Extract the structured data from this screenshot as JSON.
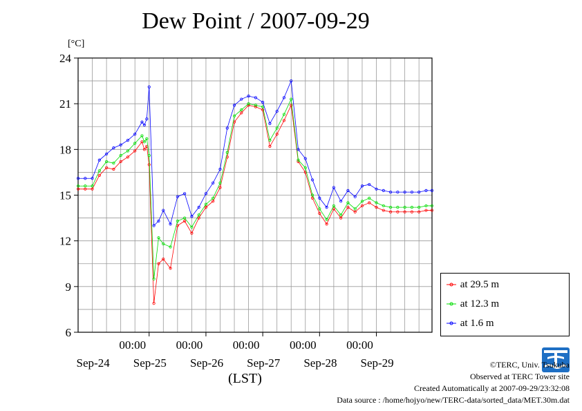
{
  "chart_data": {
    "type": "line",
    "title": "Dew Point / 2007-09-29",
    "unit_label": "[°C]",
    "xlabel": "(LST)",
    "ylim": [
      6,
      24
    ],
    "yticks": [
      6,
      9,
      12,
      15,
      18,
      21,
      24
    ],
    "xlim": [
      "2007-09-23T18:00",
      "2007-09-29T23:30"
    ],
    "x_time_ticks": [
      "00:00",
      "00:00",
      "00:00",
      "00:00",
      "00:00"
    ],
    "x_date_labels": [
      "Sep-24",
      "Sep-25",
      "Sep-26",
      "Sep-27",
      "Sep-28",
      "Sep-29"
    ],
    "grid": true,
    "legend_position": "bottom-right, outside plot",
    "anchors_x": [
      "2007-09-23T18:00",
      "2007-09-23T21:00",
      "2007-09-24T00:00",
      "2007-09-24T03:00",
      "2007-09-24T06:00",
      "2007-09-24T09:00",
      "2007-09-24T12:00",
      "2007-09-24T15:00",
      "2007-09-24T18:00",
      "2007-09-24T21:00",
      "2007-09-24T22:00",
      "2007-09-24T23:00",
      "2007-09-25T00:00",
      "2007-09-25T02:00",
      "2007-09-25T04:00",
      "2007-09-25T06:00",
      "2007-09-25T09:00",
      "2007-09-25T12:00",
      "2007-09-25T15:00",
      "2007-09-25T18:00",
      "2007-09-25T21:00",
      "2007-09-26T00:00",
      "2007-09-26T03:00",
      "2007-09-26T06:00",
      "2007-09-26T09:00",
      "2007-09-26T12:00",
      "2007-09-26T15:00",
      "2007-09-26T18:00",
      "2007-09-26T21:00",
      "2007-09-27T00:00",
      "2007-09-27T03:00",
      "2007-09-27T06:00",
      "2007-09-27T09:00",
      "2007-09-27T12:00",
      "2007-09-27T15:00",
      "2007-09-27T18:00",
      "2007-09-27T21:00",
      "2007-09-28T00:00",
      "2007-09-28T03:00",
      "2007-09-28T06:00",
      "2007-09-28T09:00",
      "2007-09-28T12:00",
      "2007-09-28T15:00",
      "2007-09-28T18:00",
      "2007-09-28T21:00",
      "2007-09-29T00:00",
      "2007-09-29T03:00",
      "2007-09-29T06:00",
      "2007-09-29T09:00",
      "2007-09-29T12:00",
      "2007-09-29T15:00",
      "2007-09-29T18:00",
      "2007-09-29T21:00",
      "2007-09-29T23:30"
    ],
    "series": [
      {
        "name": "at 29.5 m",
        "color": "#ff0000",
        "values": [
          15.4,
          15.4,
          15.4,
          16.3,
          16.8,
          16.7,
          17.2,
          17.5,
          17.9,
          18.5,
          18.0,
          18.2,
          17.0,
          7.9,
          10.5,
          10.8,
          10.2,
          13.0,
          13.3,
          12.5,
          13.5,
          14.2,
          14.6,
          15.5,
          17.5,
          19.8,
          20.4,
          20.9,
          20.8,
          20.6,
          18.2,
          19.0,
          19.9,
          20.9,
          17.2,
          16.5,
          14.8,
          13.8,
          13.1,
          14.1,
          13.5,
          14.2,
          13.9,
          14.3,
          14.5,
          14.2,
          14.0,
          13.9,
          13.9,
          13.9,
          13.9,
          13.9,
          14.0,
          14.0
        ]
      },
      {
        "name": "at 12.3 m",
        "color": "#00dd00",
        "values": [
          15.6,
          15.6,
          15.6,
          16.6,
          17.2,
          17.1,
          17.6,
          17.9,
          18.4,
          18.9,
          18.5,
          18.7,
          17.6,
          9.5,
          12.2,
          11.8,
          11.6,
          13.3,
          13.5,
          12.9,
          13.7,
          14.4,
          14.8,
          15.8,
          17.8,
          20.2,
          20.6,
          21.0,
          20.9,
          20.8,
          18.6,
          19.4,
          20.3,
          21.3,
          17.3,
          16.8,
          15.0,
          14.1,
          13.4,
          14.3,
          13.7,
          14.5,
          14.1,
          14.6,
          14.8,
          14.5,
          14.3,
          14.2,
          14.2,
          14.2,
          14.2,
          14.2,
          14.3,
          14.3
        ]
      },
      {
        "name": "at 1.6 m",
        "color": "#0000ff",
        "values": [
          16.1,
          16.1,
          16.1,
          17.3,
          17.7,
          18.1,
          18.3,
          18.6,
          19.0,
          19.8,
          19.6,
          20.0,
          22.1,
          13.0,
          13.3,
          14.0,
          13.1,
          14.9,
          15.1,
          13.6,
          14.2,
          15.1,
          15.8,
          16.7,
          19.4,
          20.9,
          21.3,
          21.5,
          21.4,
          21.1,
          19.7,
          20.5,
          21.4,
          22.5,
          18.0,
          17.4,
          16.0,
          14.8,
          14.2,
          15.5,
          14.6,
          15.3,
          14.9,
          15.6,
          15.7,
          15.4,
          15.3,
          15.2,
          15.2,
          15.2,
          15.2,
          15.2,
          15.3,
          15.3
        ]
      }
    ]
  },
  "credits": {
    "copyright": "©TERC, Univ. Tsukuba",
    "observed": "Observed at TERC Tower site",
    "created": "Created Automatically at 2007-09-29/23:32:08",
    "source": "Data source : /home/hojyo/new/TERC-data/sorted_data/MET.30m.dat"
  },
  "logo_icon": "terc-logo-icon"
}
